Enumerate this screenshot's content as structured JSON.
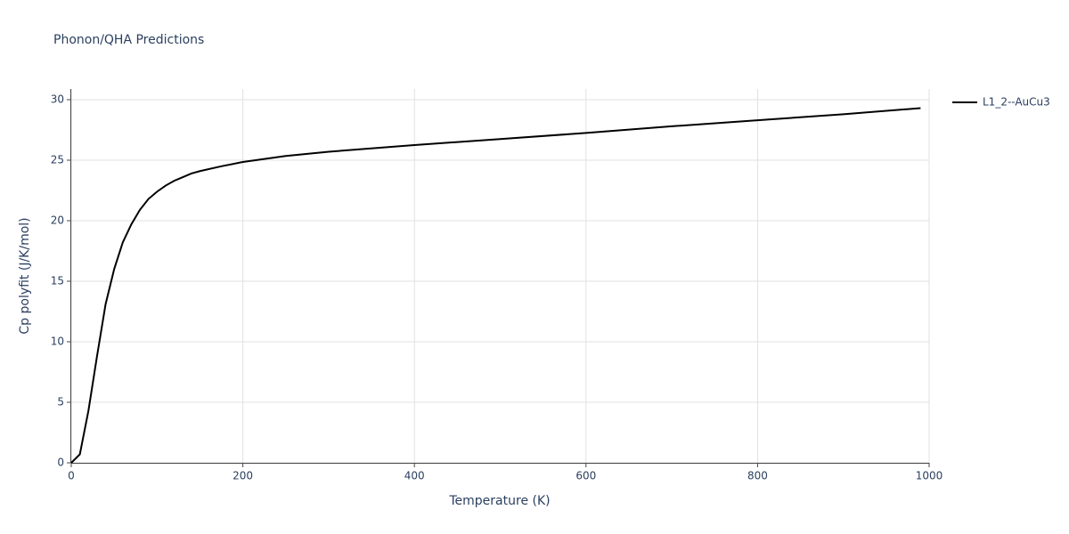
{
  "chart_data": {
    "type": "line",
    "title": "Phonon/QHA Predictions",
    "x_label": "Temperature (K)",
    "y_label": "Cp polyfit (J/K/mol)",
    "x": [
      0,
      10,
      20,
      30,
      40,
      50,
      60,
      70,
      80,
      90,
      100,
      110,
      120,
      130,
      140,
      150,
      175,
      200,
      250,
      300,
      400,
      500,
      600,
      700,
      800,
      900,
      990
    ],
    "series": [
      {
        "name": "L1_2--AuCu3",
        "color": "#000000",
        "values": [
          0,
          0.7,
          4.3,
          8.8,
          13.1,
          16.0,
          18.2,
          19.7,
          20.9,
          21.8,
          22.4,
          22.9,
          23.3,
          23.6,
          23.9,
          24.1,
          24.5,
          24.85,
          25.35,
          25.7,
          26.25,
          26.75,
          27.25,
          27.8,
          28.3,
          28.8,
          29.3
        ]
      }
    ],
    "xlim": [
      0,
      1000
    ],
    "xticks": [
      0,
      200,
      400,
      600,
      800,
      1000
    ],
    "ylim": [
      0,
      30
    ],
    "yticks": [
      0,
      5,
      10,
      15,
      20,
      25,
      30
    ],
    "grid": true,
    "legend": "right"
  }
}
